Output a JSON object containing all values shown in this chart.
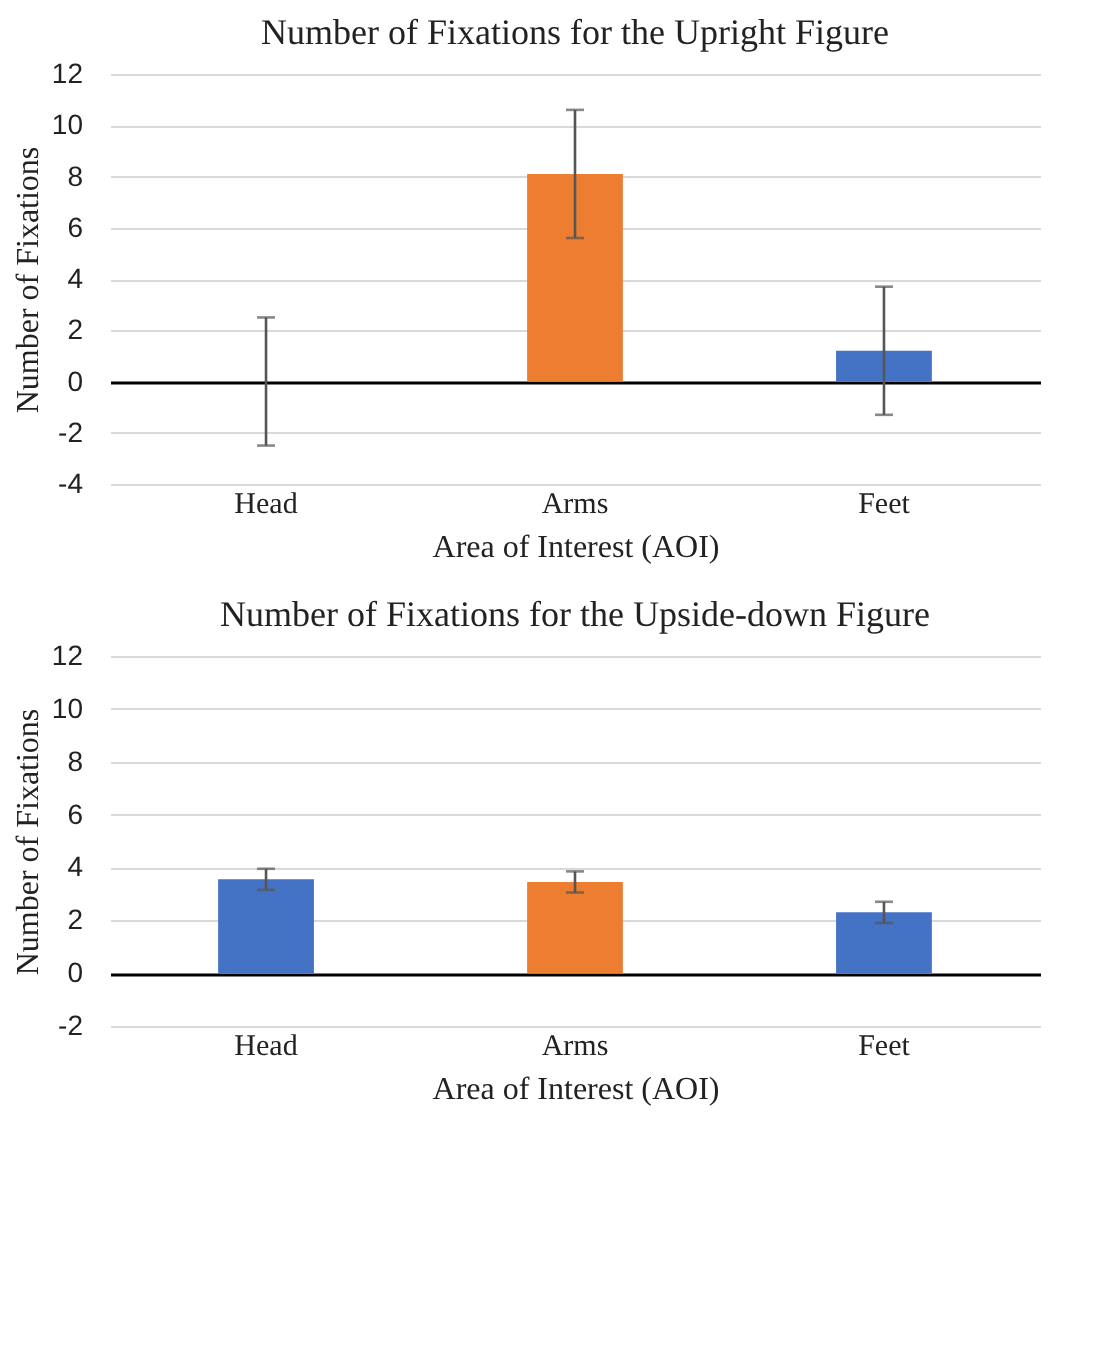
{
  "chart_data": [
    {
      "type": "bar",
      "title": "Number of Fixations for the Upright Figure",
      "xlabel": "Area of Interest (AOI)",
      "ylabel": "Number of Fixations",
      "categories": [
        "Head",
        "Arms",
        "Feet"
      ],
      "values": [
        0,
        8.1,
        1.2
      ],
      "errors": [
        2.5,
        2.5,
        2.5
      ],
      "colors": [
        "#4472c4",
        "#ed7d31",
        "#4472c4"
      ],
      "ylim": [
        -4,
        12
      ],
      "yticks": [
        -4,
        -2,
        0,
        2,
        4,
        6,
        8,
        10,
        12
      ],
      "grid": "y"
    },
    {
      "type": "bar",
      "title": "Number of Fixations for the Upside-down Figure",
      "xlabel": "Area of Interest (AOI)",
      "ylabel": "Number of Fixations",
      "categories": [
        "Head",
        "Arms",
        "Feet"
      ],
      "values": [
        3.55,
        3.45,
        2.3
      ],
      "errors": [
        0.4,
        0.4,
        0.4
      ],
      "colors": [
        "#4472c4",
        "#ed7d31",
        "#4472c4"
      ],
      "ylim": [
        -2,
        12
      ],
      "yticks": [
        -2,
        0,
        2,
        4,
        6,
        8,
        10,
        12
      ],
      "grid": "y"
    }
  ]
}
